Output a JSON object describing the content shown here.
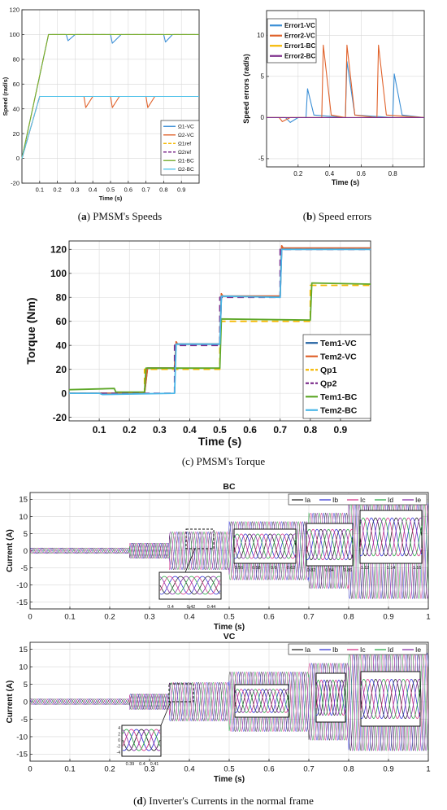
{
  "captions": {
    "a_letter": "a",
    "a_text": " PMSM's Speeds",
    "b_letter": "b",
    "b_text": " Speed errors",
    "c_text": "(c) PMSM's Torque",
    "d_letter": "d",
    "d_text": " Inverter's Currents in the normal frame"
  },
  "chart_data": [
    {
      "id": "a",
      "type": "line",
      "xlabel": "Time (s)",
      "ylabel": "Speed (rad/s)",
      "xlim": [
        0,
        1
      ],
      "ylim": [
        -20,
        120
      ],
      "xticks": [
        "0.1",
        "0.2",
        "0.3",
        "0.4",
        "0.5",
        "0.6",
        "0.7",
        "0.8",
        "0.9"
      ],
      "yticks": [
        "-20",
        "0",
        "20",
        "40",
        "60",
        "80",
        "100",
        "120"
      ],
      "legend_position": "bottom-right",
      "series": [
        {
          "name": "Ω1-VC",
          "color": "#3b8fd6",
          "dash": "",
          "points": [
            [
              0,
              0
            ],
            [
              0.15,
              100
            ],
            [
              0.25,
              100
            ],
            [
              0.26,
              95
            ],
            [
              0.3,
              100
            ],
            [
              0.5,
              100
            ],
            [
              0.51,
              93
            ],
            [
              0.56,
              100
            ],
            [
              0.8,
              100
            ],
            [
              0.81,
              94
            ],
            [
              0.85,
              100
            ],
            [
              1,
              100
            ]
          ]
        },
        {
          "name": "Ω2-VC",
          "color": "#e0622b",
          "dash": "",
          "points": [
            [
              0,
              0
            ],
            [
              0.1,
              50
            ],
            [
              0.35,
              50
            ],
            [
              0.36,
              41
            ],
            [
              0.4,
              50
            ],
            [
              0.5,
              50
            ],
            [
              0.51,
              41
            ],
            [
              0.55,
              50
            ],
            [
              0.7,
              50
            ],
            [
              0.71,
              41
            ],
            [
              0.75,
              50
            ],
            [
              1,
              50
            ]
          ]
        },
        {
          "name": "Ω1ref",
          "color": "#f5b800",
          "dash": "6,4",
          "points": [
            [
              0,
              0
            ],
            [
              0.15,
              100
            ],
            [
              1,
              100
            ]
          ]
        },
        {
          "name": "Ω2ref",
          "color": "#7d2e8c",
          "dash": "6,4",
          "points": [
            [
              0,
              0
            ],
            [
              0.1,
              50
            ],
            [
              1,
              50
            ]
          ]
        },
        {
          "name": "Ω1-BC",
          "color": "#77ad2f",
          "dash": "",
          "points": [
            [
              0,
              0
            ],
            [
              0.15,
              100
            ],
            [
              1,
              100
            ]
          ]
        },
        {
          "name": "Ω2-BC",
          "color": "#55c4ea",
          "dash": "",
          "points": [
            [
              0,
              0
            ],
            [
              0.1,
              50
            ],
            [
              1,
              50
            ]
          ]
        }
      ]
    },
    {
      "id": "b",
      "type": "line",
      "xlabel": "Time (s)",
      "ylabel": "Speed errors (rad/s)",
      "xlim": [
        0,
        1
      ],
      "ylim": [
        -6,
        13
      ],
      "xticks": [
        "0.2",
        "0.4",
        "0.6",
        "0.8"
      ],
      "yticks": [
        "-5",
        "0",
        "5",
        "10"
      ],
      "legend_position": "top-left",
      "series": [
        {
          "name": "Error1-VC",
          "color": "#3b8fd6",
          "dash": "",
          "points": [
            [
              0,
              0
            ],
            [
              0.12,
              0
            ],
            [
              0.15,
              -0.6
            ],
            [
              0.2,
              0
            ],
            [
              0.25,
              0
            ],
            [
              0.26,
              3.5
            ],
            [
              0.3,
              0.3
            ],
            [
              0.5,
              0
            ],
            [
              0.51,
              6.8
            ],
            [
              0.56,
              0.3
            ],
            [
              0.8,
              0
            ],
            [
              0.81,
              5.3
            ],
            [
              0.86,
              0.3
            ],
            [
              1,
              0
            ]
          ]
        },
        {
          "name": "Error2-VC",
          "color": "#e0622b",
          "dash": "",
          "points": [
            [
              0,
              0
            ],
            [
              0.08,
              0
            ],
            [
              0.1,
              -0.5
            ],
            [
              0.15,
              0
            ],
            [
              0.35,
              0
            ],
            [
              0.36,
              8.8
            ],
            [
              0.41,
              0.3
            ],
            [
              0.5,
              0
            ],
            [
              0.51,
              8.8
            ],
            [
              0.56,
              0.3
            ],
            [
              0.7,
              0
            ],
            [
              0.71,
              8.8
            ],
            [
              0.76,
              0.3
            ],
            [
              1,
              0
            ]
          ]
        },
        {
          "name": "Error1-BC",
          "color": "#f5b800",
          "dash": "",
          "points": [
            [
              0,
              0
            ],
            [
              1,
              0
            ]
          ]
        },
        {
          "name": "Error2-BC",
          "color": "#7d2e8c",
          "dash": "",
          "points": [
            [
              0,
              0
            ],
            [
              1,
              0
            ]
          ]
        }
      ]
    },
    {
      "id": "c",
      "type": "line",
      "xlabel": "Time (s)",
      "ylabel": "Torque (Nm)",
      "xlim": [
        0,
        1
      ],
      "ylim": [
        -23,
        127
      ],
      "xticks": [
        "0.1",
        "0.2",
        "0.3",
        "0.4",
        "0.5",
        "0.6",
        "0.7",
        "0.8",
        "0.9"
      ],
      "yticks": [
        "-20",
        "0",
        "20",
        "40",
        "60",
        "80",
        "100",
        "120"
      ],
      "legend_position": "bottom-right",
      "series": [
        {
          "name": "Tem1-VC",
          "color": "#1f5fa0",
          "dash": "",
          "points": [
            [
              0,
              0
            ],
            [
              0.25,
              0
            ],
            [
              0.26,
              21
            ],
            [
              0.35,
              21
            ],
            [
              0.355,
              41
            ],
            [
              0.5,
              41
            ],
            [
              0.505,
              81
            ],
            [
              0.7,
              81
            ],
            [
              0.705,
              121
            ],
            [
              1,
              121
            ]
          ]
        },
        {
          "name": "Tem2-VC",
          "color": "#e0622b",
          "dash": "",
          "points": [
            [
              0,
              0
            ],
            [
              0.25,
              0
            ],
            [
              0.26,
              21
            ],
            [
              0.35,
              21
            ],
            [
              0.355,
              43
            ],
            [
              0.36,
              41
            ],
            [
              0.5,
              41
            ],
            [
              0.505,
              83
            ],
            [
              0.51,
              81
            ],
            [
              0.7,
              81
            ],
            [
              0.705,
              123
            ],
            [
              0.71,
              121
            ],
            [
              1,
              121
            ]
          ]
        },
        {
          "name": "Qp1",
          "color": "#f5b800",
          "dash": "8,5",
          "points": [
            [
              0,
              0
            ],
            [
              0.25,
              0
            ],
            [
              0.25,
              20
            ],
            [
              0.5,
              20
            ],
            [
              0.5,
              60
            ],
            [
              0.8,
              60
            ],
            [
              0.8,
              90
            ],
            [
              1,
              90
            ]
          ]
        },
        {
          "name": "Qp2",
          "color": "#7d2e8c",
          "dash": "8,5",
          "points": [
            [
              0,
              0
            ],
            [
              0.35,
              0
            ],
            [
              0.35,
              40
            ],
            [
              0.5,
              40
            ],
            [
              0.5,
              80
            ],
            [
              0.7,
              80
            ],
            [
              0.7,
              120
            ],
            [
              1,
              120
            ]
          ]
        },
        {
          "name": "Tem1-BC",
          "color": "#5fa82a",
          "dash": "",
          "points": [
            [
              0,
              3
            ],
            [
              0.15,
              4
            ],
            [
              0.155,
              1
            ],
            [
              0.25,
              1
            ],
            [
              0.255,
              21
            ],
            [
              0.5,
              21
            ],
            [
              0.505,
              62
            ],
            [
              0.8,
              61
            ],
            [
              0.805,
              92
            ],
            [
              1,
              91
            ]
          ]
        },
        {
          "name": "Tem2-BC",
          "color": "#4ab7e8",
          "dash": "",
          "points": [
            [
              0,
              0
            ],
            [
              0.1,
              0
            ],
            [
              0.11,
              -1
            ],
            [
              0.35,
              0
            ],
            [
              0.355,
              41
            ],
            [
              0.5,
              41
            ],
            [
              0.505,
              81
            ],
            [
              0.7,
              80
            ],
            [
              0.705,
              120
            ],
            [
              1,
              120
            ]
          ]
        }
      ]
    },
    {
      "id": "d1",
      "type": "line",
      "title": "BC",
      "xlabel": "Time (s)",
      "ylabel": "Current (A)",
      "xlim": [
        0,
        1
      ],
      "ylim": [
        -17,
        17
      ],
      "xticks": [
        "0",
        "0.1",
        "0.2",
        "0.3",
        "0.4",
        "0.5",
        "0.6",
        "0.7",
        "0.8",
        "0.9",
        "1"
      ],
      "yticks": [
        "-15",
        "-10",
        "-5",
        "0",
        "5",
        "10",
        "15"
      ],
      "legend_position": "top-right",
      "series": [
        {
          "name": "Ia",
          "color": "#2b2b2b",
          "dash": ""
        },
        {
          "name": "Ib",
          "color": "#3a3ad6",
          "dash": ""
        },
        {
          "name": "Ic",
          "color": "#d63a8c",
          "dash": ""
        },
        {
          "name": "Id",
          "color": "#2fa84a",
          "dash": ""
        },
        {
          "name": "Ie",
          "color": "#8a2fa8",
          "dash": ""
        }
      ],
      "envelope": [
        [
          0,
          0.8
        ],
        [
          0.25,
          0.8
        ],
        [
          0.25,
          2.2
        ],
        [
          0.35,
          2.2
        ],
        [
          0.35,
          5.5
        ],
        [
          0.5,
          5.5
        ],
        [
          0.5,
          8.5
        ],
        [
          0.7,
          8.5
        ],
        [
          0.7,
          11
        ],
        [
          0.8,
          11
        ],
        [
          0.8,
          14
        ],
        [
          1,
          14
        ]
      ],
      "inset_ticks": [
        "0.4",
        "0.42",
        "0.44"
      ],
      "zoom_ticks": [
        [
          "0.56",
          "0.58",
          "0.6",
          "0.62"
        ],
        [
          "0.82",
          "0.84",
          "0.86"
        ],
        [
          "1.12",
          "1.14",
          "1.16"
        ]
      ]
    },
    {
      "id": "d2",
      "type": "line",
      "title": "VC",
      "xlabel": "Time (s)",
      "ylabel": "Current (A)",
      "xlim": [
        0,
        1
      ],
      "ylim": [
        -17,
        17
      ],
      "xticks": [
        "0",
        "0.1",
        "0.2",
        "0.3",
        "0.4",
        "0.5",
        "0.6",
        "0.7",
        "0.8",
        "0.9",
        "1"
      ],
      "yticks": [
        "-15",
        "-10",
        "-5",
        "0",
        "5",
        "10",
        "15"
      ],
      "legend_position": "top-right",
      "series": [
        {
          "name": "Ia",
          "color": "#2b2b2b",
          "dash": ""
        },
        {
          "name": "Ib",
          "color": "#3a3ad6",
          "dash": ""
        },
        {
          "name": "Ic",
          "color": "#d63a8c",
          "dash": ""
        },
        {
          "name": "Id",
          "color": "#2fa84a",
          "dash": ""
        },
        {
          "name": "Ie",
          "color": "#8a2fa8",
          "dash": ""
        }
      ],
      "envelope": [
        [
          0,
          0.8
        ],
        [
          0.25,
          0.8
        ],
        [
          0.25,
          2.2
        ],
        [
          0.35,
          2.2
        ],
        [
          0.35,
          5.5
        ],
        [
          0.5,
          5.5
        ],
        [
          0.5,
          8.5
        ],
        [
          0.7,
          8.5
        ],
        [
          0.7,
          11
        ],
        [
          0.8,
          11
        ],
        [
          0.8,
          14
        ],
        [
          1,
          14
        ]
      ],
      "inset_ticks": [
        "0.39",
        "0.4",
        "0.41"
      ],
      "inset_yticks": [
        "4",
        "2",
        "0",
        "-2",
        "-4"
      ]
    }
  ]
}
